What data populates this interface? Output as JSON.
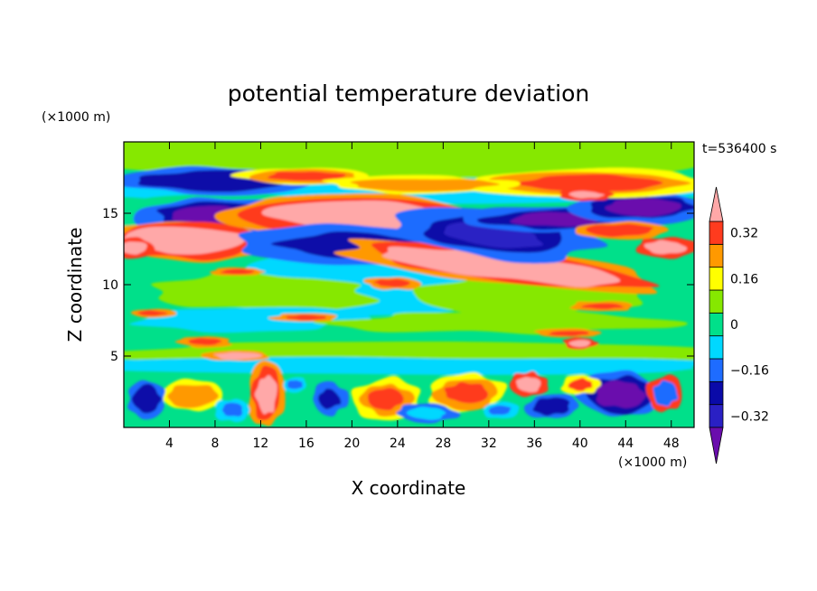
{
  "chart_data": {
    "type": "heatmap",
    "title": "potential temperature deviation",
    "xlabel": "X coordinate",
    "ylabel": "Z coordinate",
    "x_unit": "(×1000 m)",
    "y_unit": "(×1000 m)",
    "time_label": "t=536400 s",
    "xlim": [
      0,
      50
    ],
    "ylim": [
      0,
      20
    ],
    "x_ticks": [
      4,
      8,
      12,
      16,
      20,
      24,
      28,
      32,
      36,
      40,
      44,
      48
    ],
    "y_ticks": [
      5,
      10,
      15
    ],
    "colorbar": {
      "levels": [
        -0.4,
        -0.32,
        -0.24,
        -0.16,
        -0.08,
        0,
        0.08,
        0.16,
        0.24,
        0.32,
        0.4
      ],
      "tick_labels": [
        "0.32",
        "0.16",
        "0",
        "−0.16",
        "−0.32"
      ],
      "tick_values": [
        0.32,
        0.16,
        0,
        -0.16,
        -0.32
      ],
      "colors": [
        "#6a0dad",
        "#2a20c4",
        "#0a0aa8",
        "#1e6cff",
        "#00d8ff",
        "#00e08a",
        "#86e800",
        "#ffff00",
        "#ff9900",
        "#ff3b1e",
        "#ffa8a8"
      ]
    },
    "features": [
      {
        "type": "positive",
        "x": 5.5,
        "z": 13.2,
        "value": 0.45
      },
      {
        "type": "positive",
        "x": 21,
        "z": 14.8,
        "value": 0.45
      },
      {
        "type": "positive",
        "x": 33,
        "z": 11.2,
        "value": 0.45
      },
      {
        "type": "negative",
        "x": 8,
        "z": 14.8,
        "value": -0.42
      },
      {
        "type": "negative",
        "x": 36,
        "z": 14.7,
        "value": -0.4
      },
      {
        "type": "negative",
        "x": 45,
        "z": 15.3,
        "value": -0.42
      },
      {
        "type": "negative",
        "x": 20,
        "z": 12.8,
        "value": -0.2
      },
      {
        "type": "positive",
        "x": 12.5,
        "z": 2.4,
        "value": 0.4
      },
      {
        "type": "negative",
        "x": 44,
        "z": 2.3,
        "value": -0.36
      }
    ]
  }
}
